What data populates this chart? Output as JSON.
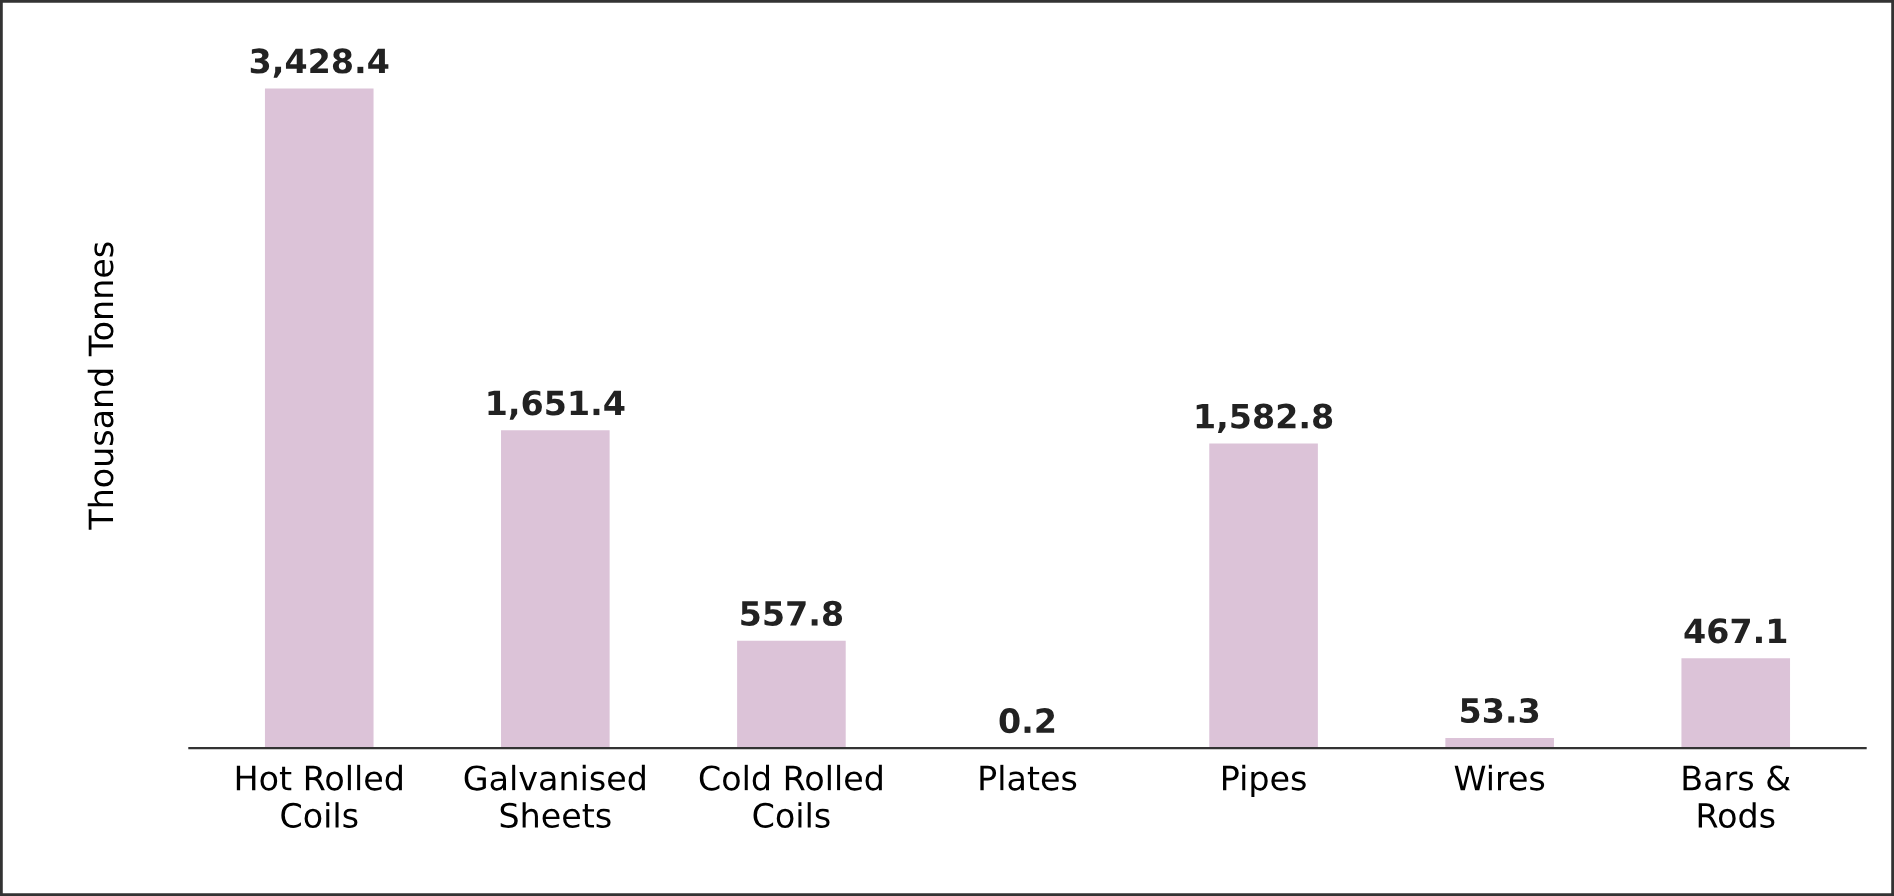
{
  "chart_data": {
    "type": "bar",
    "ylabel": "Thousand Tonnes",
    "categories": [
      "Hot Rolled\nCoils",
      "Galvanised\nSheets",
      "Cold Rolled\nCoils",
      "Plates",
      "Pipes",
      "Wires",
      "Bars &\nRods"
    ],
    "values": [
      3428.4,
      1651.4,
      557.8,
      0.2,
      1582.8,
      53.3,
      467.1
    ],
    "value_labels": [
      "3,428.4",
      "1,651.4",
      "557.8",
      "0.2",
      "1,582.8",
      "53.3",
      "467.1"
    ],
    "color": "#dcc3d8",
    "grid": false,
    "legend": false
  }
}
